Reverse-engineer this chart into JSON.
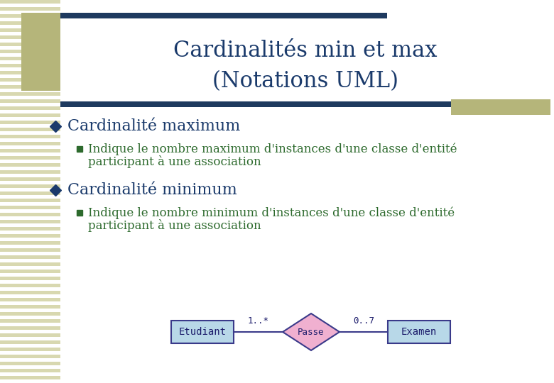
{
  "title_line1": "Cardinalités min et max",
  "title_line2": "(Notations UML)",
  "title_color": "#1a3a6b",
  "title_fontsize": 22,
  "bg_color": "#ffffff",
  "header_bar_color": "#1e3a5f",
  "accent_rect_color": "#b5b57a",
  "stripe_color_a": "#d8d8b0",
  "stripe_color_b": "#ffffff",
  "bullet1_text": "Cardinalité maximum",
  "bullet1_sub_line1": "Indique le nombre maximum d'instances d'une classe d'entité",
  "bullet1_sub_line2": "participant à une association",
  "bullet2_text": "Cardinalité minimum",
  "bullet2_sub_line1": "Indique le nombre minimum d'instances d'une classe d'entité",
  "bullet2_sub_line2": "participant à une association",
  "bullet_color": "#1a3a6b",
  "sub_color": "#2d6a2d",
  "bullet_fontsize": 16,
  "sub_fontsize": 12,
  "diamond_color": "#f0b0d0",
  "diamond_edge_color": "#3a3a8a",
  "box_color": "#b8d8e8",
  "box_edge_color": "#3a3a8a",
  "diagram_label_etudiant": "Etudiant",
  "diagram_label_passe": "Passe",
  "diagram_label_examen": "Examen",
  "diagram_card_left": "1..*",
  "diagram_card_right": "0..7",
  "diagram_text_color": "#1a1a6a"
}
